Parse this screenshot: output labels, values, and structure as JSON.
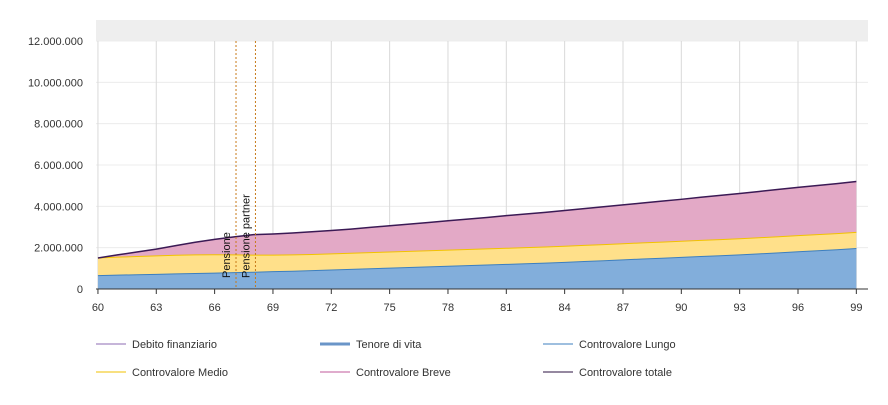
{
  "chart_data": {
    "type": "area",
    "x": [
      60,
      61,
      62,
      63,
      64,
      65,
      66,
      67,
      68,
      69,
      70,
      71,
      72,
      73,
      74,
      75,
      76,
      77,
      78,
      79,
      80,
      81,
      82,
      83,
      84,
      85,
      86,
      87,
      88,
      89,
      90,
      91,
      92,
      93,
      94,
      95,
      96,
      97,
      98,
      99
    ],
    "x_ticks": [
      60,
      63,
      66,
      69,
      72,
      75,
      78,
      81,
      84,
      87,
      90,
      93,
      96,
      99
    ],
    "y_ticks": [
      {
        "value": 0,
        "label": "0"
      },
      {
        "value": 2000000,
        "label": "2.000.000"
      },
      {
        "value": 4000000,
        "label": "4.000.000"
      },
      {
        "value": 6000000,
        "label": "6.000.000"
      },
      {
        "value": 8000000,
        "label": "8.000.000"
      },
      {
        "value": 10000000,
        "label": "10.000.000"
      },
      {
        "value": 12000000,
        "label": "12.000.000"
      }
    ],
    "xlim": [
      59.9,
      99.6
    ],
    "ylim": [
      0,
      12000000
    ],
    "grid": true,
    "legend_position": "bottom",
    "series": [
      {
        "name": "Controvalore Lungo",
        "values": [
          650000,
          670000,
          690000,
          710000,
          730000,
          750000,
          770000,
          790000,
          810000,
          840000,
          860000,
          890000,
          920000,
          950000,
          980000,
          1010000,
          1040000,
          1070000,
          1100000,
          1130000,
          1160000,
          1190000,
          1220000,
          1250000,
          1290000,
          1330000,
          1370000,
          1410000,
          1450000,
          1490000,
          1530000,
          1570000,
          1610000,
          1650000,
          1700000,
          1750000,
          1800000,
          1850000,
          1900000,
          1960000
        ]
      },
      {
        "name": "Controvalore Medio",
        "values": [
          850000,
          870000,
          880000,
          890000,
          900000,
          900000,
          890000,
          860000,
          830000,
          800000,
          790000,
          780000,
          780000,
          780000,
          780000,
          780000,
          780000,
          780000,
          780000,
          780000,
          780000,
          780000,
          780000,
          780000,
          780000,
          780000,
          780000,
          780000,
          780000,
          780000,
          780000,
          780000,
          780000,
          780000,
          780000,
          780000,
          780000,
          780000,
          780000,
          780000
        ]
      },
      {
        "name": "Controvalore Breve",
        "values": [
          0,
          110000,
          220000,
          330000,
          470000,
          610000,
          740000,
          870000,
          990000,
          1020000,
          1060000,
          1100000,
          1130000,
          1170000,
          1220000,
          1270000,
          1320000,
          1370000,
          1420000,
          1470000,
          1520000,
          1580000,
          1630000,
          1680000,
          1730000,
          1780000,
          1830000,
          1880000,
          1930000,
          1980000,
          2030000,
          2090000,
          2140000,
          2190000,
          2240000,
          2290000,
          2340000,
          2380000,
          2420000,
          2460000
        ]
      }
    ],
    "vertical_lines": [
      {
        "label": "Pensione",
        "x": 67.1
      },
      {
        "label": "Pensione partner",
        "x": 68.1
      }
    ],
    "legend": [
      {
        "name": "Debito finanziario",
        "color": "#8e6bb3",
        "thick": false
      },
      {
        "name": "Tenore di vita",
        "color": "#6a95c8",
        "thick": true
      },
      {
        "name": "Controvalore Lungo",
        "color": "#3d7fbf",
        "thick": false
      },
      {
        "name": "Controvalore Medio",
        "color": "#f2c200",
        "thick": false
      },
      {
        "name": "Controvalore Breve",
        "color": "#c05a9b",
        "thick": false
      },
      {
        "name": "Controvalore totale",
        "color": "#2b1040",
        "thick": false
      }
    ]
  },
  "colors": {
    "area_lungo_fill": "#82aedb",
    "area_lungo_line": "#3d7fbf",
    "area_medio_fill": "#ffe08a",
    "area_medio_line": "#f2c200",
    "area_breve_fill": "#e3a9c6",
    "total_line": "#3b1a55",
    "vline": "#c87a1a",
    "grid": "#d9d9d9",
    "band": "#eeeeee"
  }
}
